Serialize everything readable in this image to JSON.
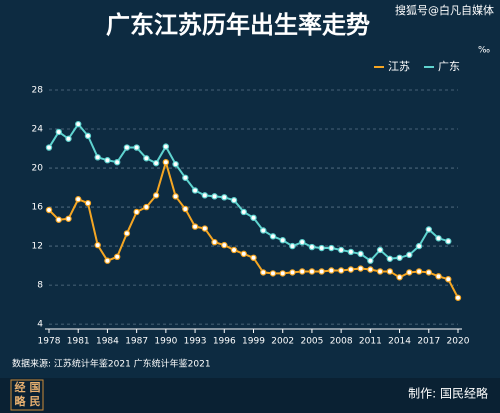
{
  "chart_data": {
    "type": "line",
    "title": "广东江苏历年出生率走势",
    "watermark": "搜狐号@白凡自媒体",
    "unit": "‰",
    "source": "数据来源: 江苏统计年鉴2021 广东统计年鉴2021",
    "credit": "制作: 国民经略",
    "logo": [
      "经",
      "国",
      "略",
      "民"
    ],
    "legend_position": "top-right",
    "grid": true,
    "x": [
      1978,
      1979,
      1980,
      1981,
      1982,
      1983,
      1984,
      1985,
      1986,
      1987,
      1988,
      1989,
      1990,
      1991,
      1992,
      1993,
      1994,
      1995,
      1996,
      1997,
      1998,
      1999,
      2000,
      2001,
      2002,
      2003,
      2004,
      2005,
      2006,
      2007,
      2008,
      2009,
      2010,
      2011,
      2012,
      2013,
      2014,
      2015,
      2016,
      2017,
      2018,
      2019,
      2020
    ],
    "xlim": [
      1978,
      2020
    ],
    "xticks": [
      1978,
      1981,
      1984,
      1987,
      1990,
      1993,
      1996,
      1999,
      2002,
      2005,
      2008,
      2011,
      2014,
      2017,
      2020
    ],
    "ylim": [
      3.5,
      28
    ],
    "yticks": [
      4,
      8,
      12,
      16,
      20,
      24,
      28
    ],
    "series": [
      {
        "name": "江苏",
        "color": "#f5a623",
        "values": [
          15.7,
          14.7,
          14.8,
          16.8,
          16.4,
          12.1,
          10.5,
          10.9,
          13.3,
          15.5,
          16.0,
          17.2,
          20.6,
          17.1,
          15.8,
          14.0,
          13.8,
          12.4,
          12.1,
          11.6,
          11.2,
          10.8,
          9.3,
          9.2,
          9.2,
          9.3,
          9.4,
          9.4,
          9.4,
          9.5,
          9.5,
          9.6,
          9.7,
          9.6,
          9.4,
          9.4,
          8.8,
          9.3,
          9.4,
          9.3,
          8.9,
          8.6,
          6.7
        ]
      },
      {
        "name": "广东",
        "color": "#5fd3cf",
        "values": [
          22.1,
          23.7,
          23.0,
          24.5,
          23.3,
          21.1,
          20.8,
          20.6,
          22.1,
          22.1,
          21.0,
          20.5,
          22.2,
          20.4,
          19.0,
          17.7,
          17.2,
          17.1,
          17.0,
          16.7,
          15.5,
          14.9,
          13.6,
          13.0,
          12.6,
          12.0,
          12.4,
          11.9,
          11.8,
          11.8,
          11.6,
          11.4,
          11.2,
          10.5,
          11.6,
          10.7,
          10.8,
          11.1,
          12.0,
          13.7,
          12.8,
          12.5,
          null
        ]
      }
    ]
  }
}
